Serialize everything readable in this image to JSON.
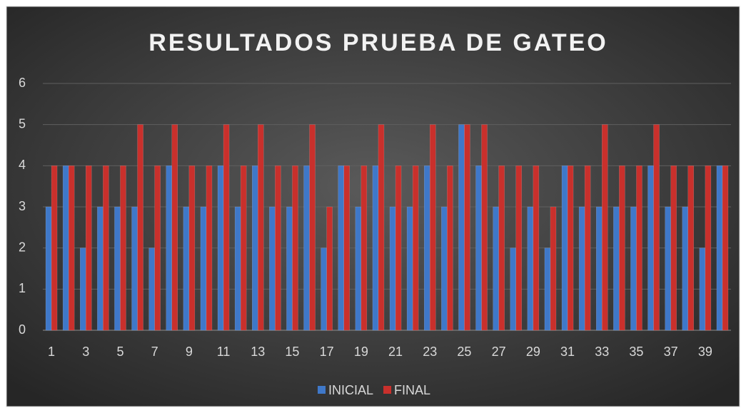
{
  "chart_data": {
    "type": "bar",
    "title": "RESULTADOS PRUEBA DE GATEO",
    "categories": [
      1,
      null,
      3,
      null,
      5,
      null,
      7,
      null,
      9,
      null,
      11,
      null,
      13,
      null,
      15,
      null,
      17,
      null,
      19,
      null,
      21,
      null,
      23,
      null,
      25,
      null,
      27,
      null,
      29,
      null,
      31,
      null,
      33,
      null,
      35,
      null,
      37,
      null,
      39,
      null
    ],
    "series": [
      {
        "name": "INICIAL",
        "color": "#3f78c9",
        "values": [
          3,
          4,
          2,
          3,
          3,
          3,
          2,
          4,
          3,
          3,
          4,
          3,
          4,
          3,
          3,
          4,
          2,
          4,
          3,
          4,
          3,
          3,
          4,
          3,
          5,
          4,
          3,
          2,
          3,
          2,
          4,
          3,
          3,
          3,
          3,
          4,
          3,
          3,
          2,
          4
        ]
      },
      {
        "name": "FINAL",
        "color": "#c9302c",
        "values": [
          4,
          4,
          4,
          4,
          4,
          5,
          4,
          5,
          4,
          4,
          5,
          4,
          5,
          4,
          4,
          5,
          3,
          4,
          4,
          5,
          4,
          4,
          5,
          4,
          5,
          5,
          4,
          4,
          4,
          3,
          4,
          4,
          5,
          4,
          4,
          5,
          4,
          4,
          4,
          4
        ]
      }
    ],
    "ylim": [
      0,
      6
    ],
    "yticks": [
      0,
      1,
      2,
      3,
      4,
      5,
      6
    ],
    "grid": true,
    "legend": "bottom"
  }
}
